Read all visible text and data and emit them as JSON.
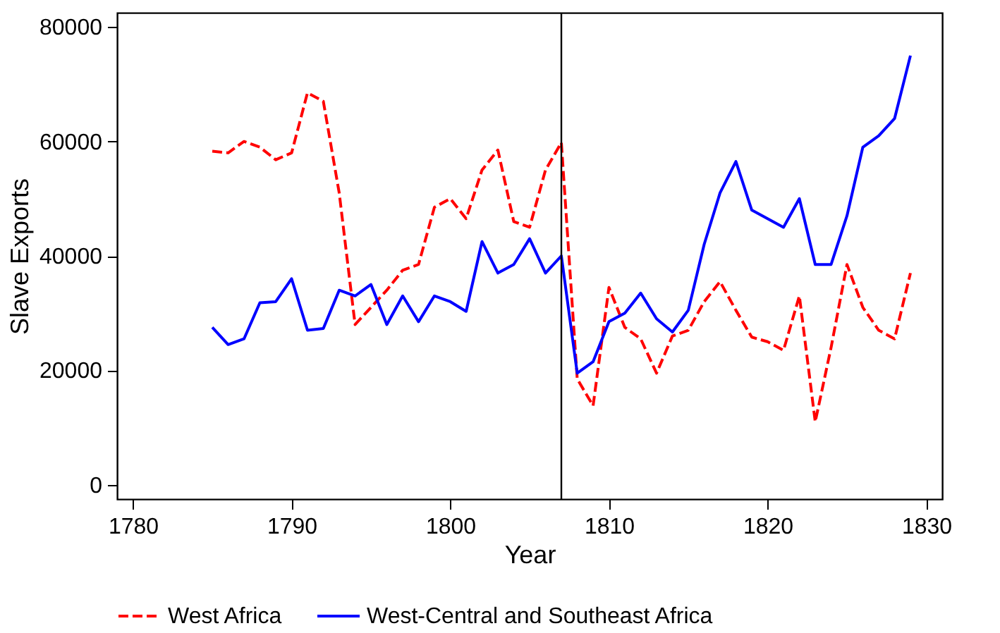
{
  "chart_data": {
    "type": "line",
    "xlabel": "Year",
    "ylabel": "Slave Exports",
    "x": [
      1785,
      1786,
      1787,
      1788,
      1789,
      1790,
      1791,
      1792,
      1793,
      1794,
      1795,
      1796,
      1797,
      1798,
      1799,
      1800,
      1801,
      1802,
      1803,
      1804,
      1805,
      1806,
      1807,
      1808,
      1809,
      1810,
      1811,
      1812,
      1813,
      1814,
      1815,
      1816,
      1817,
      1818,
      1819,
      1820,
      1821,
      1822,
      1823,
      1824,
      1825,
      1826,
      1827,
      1828,
      1829
    ],
    "series": [
      {
        "name": "West Africa",
        "color": "#ff0000",
        "line_style": "dashed",
        "values": [
          58300,
          58000,
          60000,
          59000,
          56800,
          58000,
          68500,
          67000,
          51000,
          28000,
          31000,
          34000,
          37500,
          38500,
          48500,
          50000,
          46500,
          55000,
          58500,
          46000,
          45000,
          55000,
          59800,
          18500,
          13800,
          34500,
          27500,
          25500,
          19500,
          26000,
          27000,
          32000,
          35500,
          30500,
          25800,
          25000,
          23500,
          33000,
          11000,
          24000,
          38500,
          31000,
          27000,
          25500,
          37000
        ]
      },
      {
        "name": "West-Central and Southeast Africa",
        "color": "#0000ff",
        "line_style": "solid",
        "values": [
          27500,
          24500,
          25500,
          31800,
          32000,
          36000,
          27000,
          27300,
          34000,
          33000,
          35000,
          28000,
          33000,
          28500,
          33000,
          32000,
          30300,
          42500,
          37000,
          38500,
          43000,
          37000,
          40000,
          19500,
          21500,
          28500,
          30000,
          33500,
          29000,
          26700,
          30500,
          42000,
          51000,
          56500,
          48000,
          46500,
          45000,
          50000,
          38500,
          38500,
          47000,
          59000,
          61000,
          64000,
          75000
        ]
      }
    ],
    "xlim": [
      1779,
      1831
    ],
    "xticks": [
      1780,
      1790,
      1800,
      1810,
      1820,
      1830
    ],
    "ylim": [
      -2500,
      82500
    ],
    "yticks": [
      0,
      20000,
      40000,
      60000,
      80000
    ],
    "ref_lines": [
      {
        "axis": "x",
        "value": 1807,
        "color": "#000000"
      }
    ],
    "grid": false,
    "legend": "bottom",
    "marker": "none"
  }
}
